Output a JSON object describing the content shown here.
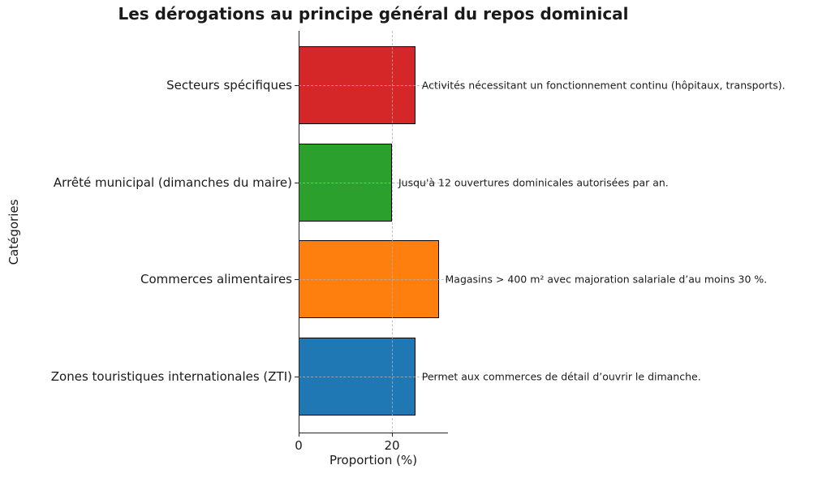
{
  "chart_data": {
    "type": "bar",
    "orientation": "horizontal",
    "title": "Les dérogations au principe général du repos dominical",
    "xlabel": "Proportion (%)",
    "ylabel": "Catégories",
    "categories": [
      "Secteurs spécifiques",
      "Arrêté municipal (dimanches du maire)",
      "Commerces alimentaires",
      "Zones touristiques internationales (ZTI)"
    ],
    "values": [
      25,
      20,
      30,
      25
    ],
    "annotations": [
      "Activités nécessitant un fonctionnement continu (hôpitaux, transports).",
      "Jusqu'à 12 ouvertures dominicales autorisées par an.",
      "Magasins > 400 m² avec majoration salariale d’au moins 30 %.",
      "Permet aux commerces de détail d’ouvrir le dimanche."
    ],
    "colors": [
      "#d62728",
      "#2ca02c",
      "#ff7f0e",
      "#1f77b4"
    ],
    "bar_edge_color": "#000000",
    "xlim": [
      0,
      32
    ],
    "xticks": [
      0,
      20
    ],
    "grid": {
      "visible": true,
      "style": "dashed",
      "color": "#b0b0b0",
      "drawn_above_bars": true
    },
    "legend": {
      "visible": false
    }
  }
}
